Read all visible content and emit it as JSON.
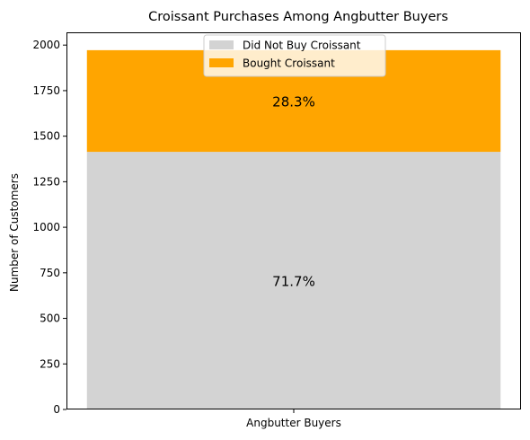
{
  "chart_data": {
    "type": "bar",
    "stacked": true,
    "title": "Croissant Purchases Among Angbutter Buyers",
    "xlabel": "",
    "ylabel": "Number of Customers",
    "categories": [
      "Angbutter Buyers"
    ],
    "ylim": [
      0,
      2070
    ],
    "yticks": [
      0,
      250,
      500,
      750,
      1000,
      1250,
      1500,
      1750,
      2000
    ],
    "ytick_labels": [
      "0",
      "250",
      "500",
      "750",
      "1000",
      "1250",
      "1500",
      "1750",
      "2000"
    ],
    "series": [
      {
        "name": "Did Not Buy Croissant",
        "values": [
          1414
        ],
        "color": "#d3d3d3",
        "label": "71.7%"
      },
      {
        "name": "Bought Croissant",
        "values": [
          558
        ],
        "color": "#ffa500",
        "label": "28.3%"
      }
    ],
    "legend": "upper-center",
    "grid": false
  }
}
